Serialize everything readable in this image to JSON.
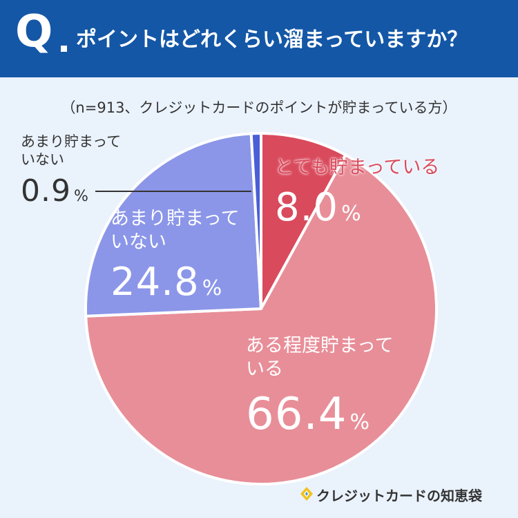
{
  "header": {
    "q_mark": "Q",
    "question": "ポイントはどれくらい溜まっていますか？"
  },
  "subtitle": "（n=913、クレジットカードのポイントが貯まっている方）",
  "chart_data": {
    "type": "pie",
    "title": "ポイントはどれくらい溜まっていますか？",
    "slices": [
      {
        "name_line1": "とても貯まっている",
        "name_line2": "",
        "value": 8.0,
        "value_text": "8.0",
        "color": "#d94a5c"
      },
      {
        "name_line1": "ある程度貯まって",
        "name_line2": "いる",
        "value": 66.4,
        "value_text": "66.4",
        "color": "#e88e98"
      },
      {
        "name_line1": "あまり貯まって",
        "name_line2": "いない",
        "value": 24.8,
        "value_text": "24.8",
        "color": "#8b96e8"
      },
      {
        "name_line1": "あまり貯まって",
        "name_line2": "いない",
        "value": 0.9,
        "value_text": "0.9",
        "color": "#4a5fd6"
      }
    ],
    "unit": "%"
  },
  "brand": "クレジットカードの知恵袋"
}
